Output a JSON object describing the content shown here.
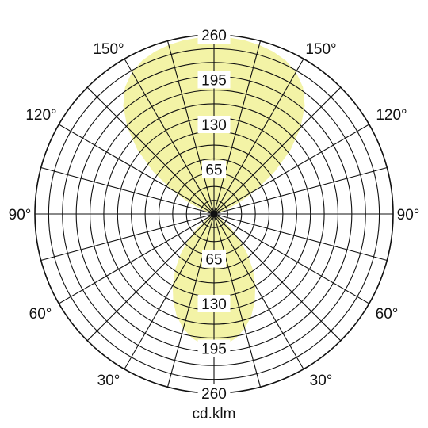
{
  "chart_data": {
    "type": "polar",
    "unit_label": "cd.klm",
    "radial_max": 260,
    "radial_ticks": [
      65,
      130,
      195,
      260
    ],
    "angle_labels": {
      "upper_left": [
        "150°",
        "120°",
        "90°"
      ],
      "upper_right": [
        "150°",
        "120°",
        "90°"
      ],
      "lower_left": [
        "60°",
        "30°"
      ],
      "lower_right": [
        "60°",
        "30°"
      ]
    },
    "radial_labels_upper": [
      "260",
      "195",
      "130",
      "65"
    ],
    "radial_labels_lower": [
      "65",
      "130",
      "195",
      "260"
    ],
    "grid": true,
    "fill_color": "#f3f3a6",
    "series": [
      {
        "distribution_deg": [
          0,
          5,
          10,
          15,
          20,
          25,
          30,
          35,
          40,
          45,
          50,
          55,
          60,
          65,
          70,
          75,
          80,
          85,
          90,
          95,
          100,
          105,
          110,
          115,
          120,
          125,
          130,
          135,
          140,
          145,
          150,
          155,
          160,
          165,
          170,
          175,
          180
        ],
        "intensity": [
          192,
          190,
          183,
          172,
          158,
          140,
          120,
          98,
          75,
          52,
          32,
          16,
          6,
          2,
          0,
          0,
          0,
          0,
          0,
          0,
          2,
          8,
          20,
          42,
          72,
          108,
          145,
          178,
          205,
          225,
          238,
          246,
          251,
          254,
          256,
          257,
          258
        ]
      }
    ]
  }
}
